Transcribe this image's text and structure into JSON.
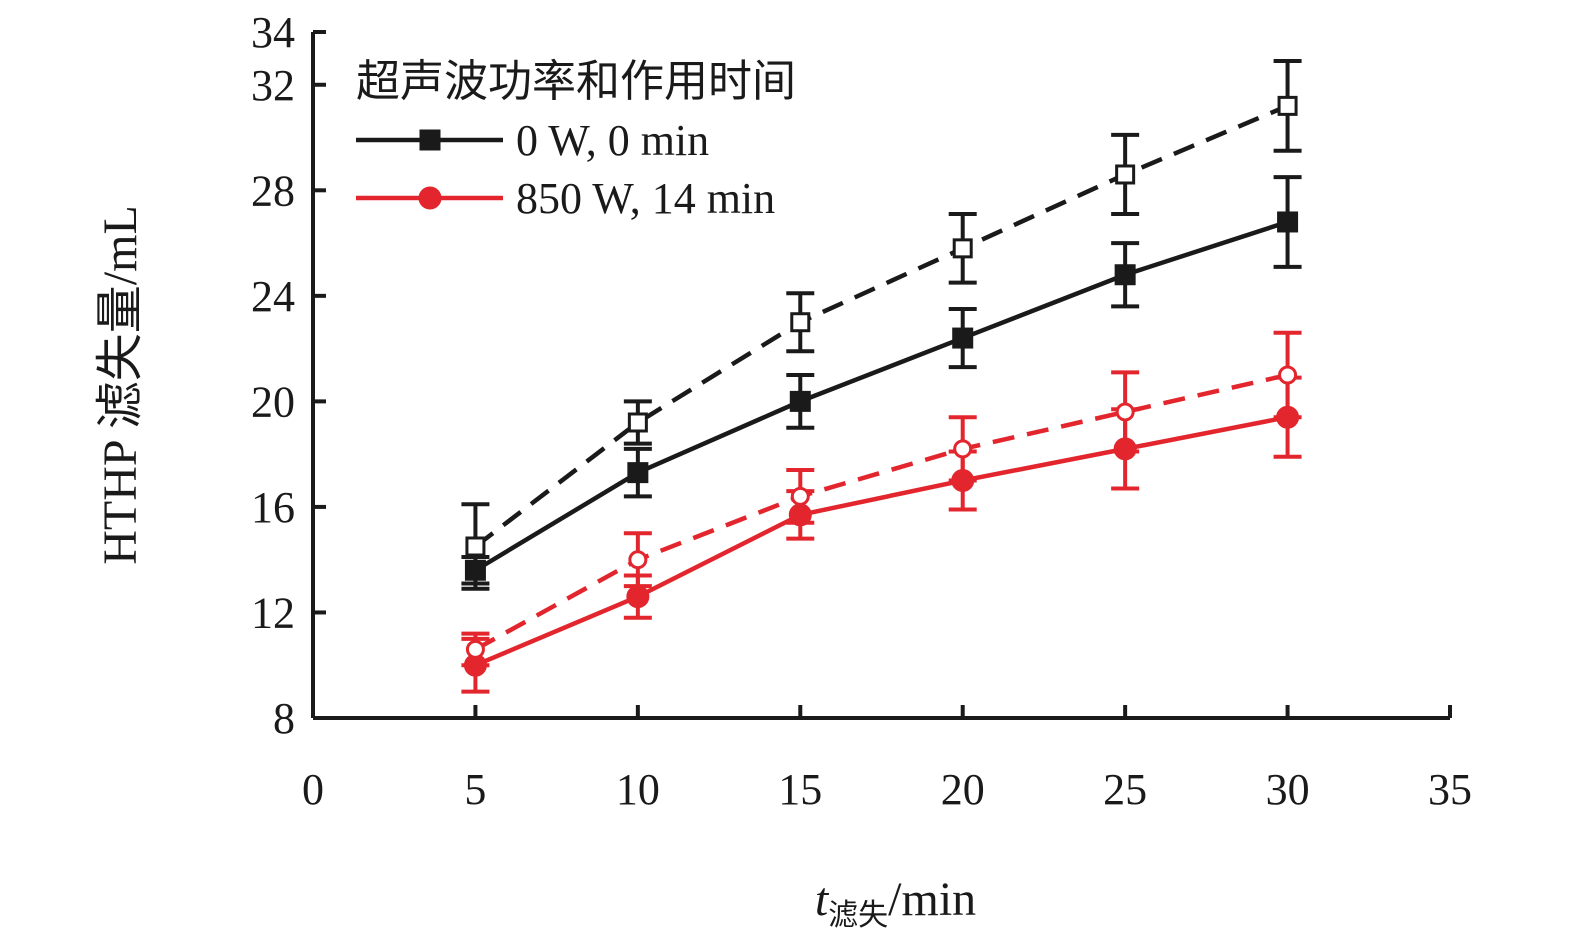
{
  "chart_data": {
    "type": "line",
    "xlabel": {
      "var": "t",
      "sub": "滤失",
      "unit": "/min"
    },
    "ylabel": "HTHP 滤失量/mL",
    "xlim": [
      0,
      35
    ],
    "ylim": [
      8,
      34
    ],
    "x_ticks": [
      0,
      5,
      10,
      15,
      20,
      25,
      30,
      35
    ],
    "y_ticks": [
      8,
      12,
      16,
      20,
      24,
      28,
      32,
      34
    ],
    "x": [
      5,
      10,
      15,
      20,
      25,
      30
    ],
    "grid": false,
    "legend": {
      "title": "超声波功率和作用时间",
      "position": "top-left",
      "entries": [
        {
          "label": "0 W, 0 min",
          "color": "#1a1a1a",
          "marker": "square"
        },
        {
          "label": "850 W, 14 min",
          "color": "#e3262d",
          "marker": "circle"
        }
      ]
    },
    "series": [
      {
        "name": "0 W, 0 min",
        "color": "#1a1a1a",
        "marker": "square",
        "filled": true,
        "dashed": false,
        "values": [
          13.6,
          17.3,
          20.0,
          22.4,
          24.8,
          26.8
        ],
        "errors": [
          0.5,
          0.9,
          1.0,
          1.1,
          1.2,
          1.7
        ]
      },
      {
        "color": "#1a1a1a",
        "marker": "square",
        "filled": false,
        "dashed": true,
        "values": [
          14.5,
          19.2,
          23.0,
          25.8,
          28.6,
          31.2
        ],
        "errors": [
          1.6,
          0.8,
          1.1,
          1.3,
          1.5,
          1.7
        ]
      },
      {
        "name": "850 W, 14 min",
        "color": "#e3262d",
        "marker": "circle",
        "filled": true,
        "dashed": false,
        "values": [
          10.0,
          12.6,
          15.7,
          17.0,
          18.2,
          19.4
        ],
        "errors": [
          1.0,
          0.8,
          0.9,
          1.1,
          1.5,
          1.5
        ],
        "error_colors": [
          "#e3262d",
          "#e3262d",
          "#e3262d",
          "#e3262d",
          "#e3262d",
          "#e3262d"
        ]
      },
      {
        "color": "#e3262d",
        "marker": "circle",
        "filled": false,
        "dashed": true,
        "values": [
          10.6,
          14.0,
          16.4,
          18.2,
          19.6,
          21.0
        ],
        "errors": [
          0.6,
          1.0,
          1.0,
          1.2,
          1.5,
          1.6
        ]
      }
    ]
  }
}
